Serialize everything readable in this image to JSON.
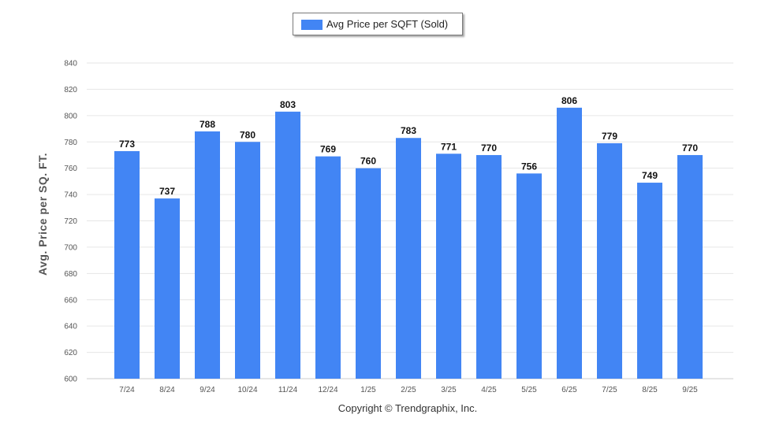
{
  "legend": {
    "label": "Avg Price per SQFT (Sold)"
  },
  "copyright": "Copyright © Trendgraphix, Inc.",
  "chart_data": {
    "type": "bar",
    "title": "",
    "xlabel": "",
    "ylabel": "Avg. Price per SQ. FT.",
    "ylim": [
      600,
      840
    ],
    "yticks": [
      600,
      620,
      640,
      660,
      680,
      700,
      720,
      740,
      760,
      780,
      800,
      820,
      840
    ],
    "grid": true,
    "legend_position": "top-center",
    "categories": [
      "7/24",
      "8/24",
      "9/24",
      "10/24",
      "11/24",
      "12/24",
      "1/25",
      "2/25",
      "3/25",
      "4/25",
      "5/25",
      "6/25",
      "7/25",
      "8/25",
      "9/25"
    ],
    "series": [
      {
        "name": "Avg Price per SQFT (Sold)",
        "color": "#4285f4",
        "values": [
          773,
          737,
          788,
          780,
          803,
          769,
          760,
          783,
          771,
          770,
          756,
          806,
          779,
          749,
          770
        ]
      }
    ]
  }
}
